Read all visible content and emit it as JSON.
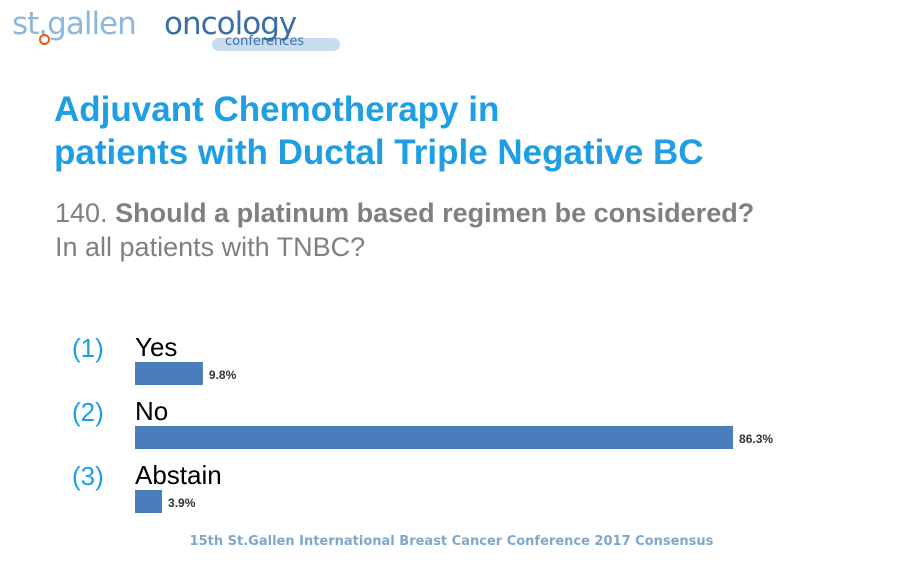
{
  "logo": {
    "part1": "st.gallen",
    "part2": "oncology",
    "part3": "conferences"
  },
  "slide": {
    "title_line1": "Adjuvant Chemotherapy in",
    "title_line2": "patients with Ductal Triple Negative BC",
    "question_number": "140.",
    "question_text": "Should a platinum based regimen be considered?",
    "question_subtext": "In all patients with TNBC?",
    "footer": "15th St.Gallen International Breast Cancer Conference 2017 Consensus"
  },
  "colors": {
    "title": "#1f9ee3",
    "bar": "#4a7ebb",
    "option_number": "#1f9ee3"
  },
  "chart_data": {
    "type": "bar",
    "orientation": "horizontal",
    "option_numbers": [
      "(1)",
      "(2)",
      "(3)"
    ],
    "categories": [
      "Yes",
      "No",
      "Abstain"
    ],
    "values": [
      9.8,
      86.3,
      3.9
    ],
    "value_labels": [
      "9.8%",
      "86.3%",
      "3.9%"
    ],
    "xlim": [
      0,
      100
    ],
    "grid": false,
    "legend": "none"
  }
}
